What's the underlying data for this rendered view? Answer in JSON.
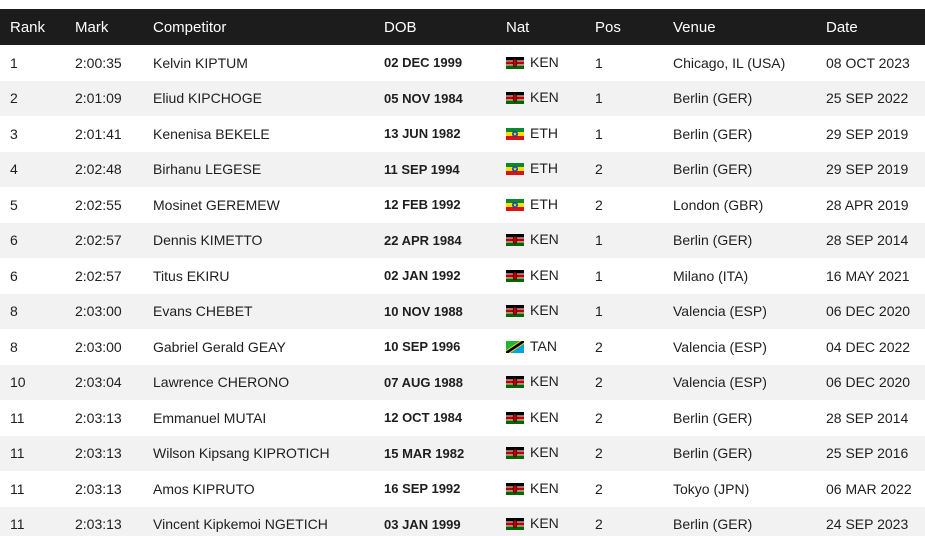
{
  "headers": {
    "rank": "Rank",
    "mark": "Mark",
    "competitor": "Competitor",
    "dob": "DOB",
    "nat": "Nat",
    "pos": "Pos",
    "venue": "Venue",
    "date": "Date"
  },
  "rows": [
    {
      "rank": "1",
      "mark": "2:00:35",
      "competitor": "Kelvin KIPTUM",
      "dob": "02 DEC 1999",
      "nat": "KEN",
      "flag": "kenya-flag-icon",
      "pos": "1",
      "venue": "Chicago, IL (USA)",
      "date": "08 OCT 2023"
    },
    {
      "rank": "2",
      "mark": "2:01:09",
      "competitor": "Eliud KIPCHOGE",
      "dob": "05 NOV 1984",
      "nat": "KEN",
      "flag": "kenya-flag-icon",
      "pos": "1",
      "venue": "Berlin (GER)",
      "date": "25 SEP 2022"
    },
    {
      "rank": "3",
      "mark": "2:01:41",
      "competitor": "Kenenisa BEKELE",
      "dob": "13 JUN 1982",
      "nat": "ETH",
      "flag": "ethiopia-flag-icon",
      "pos": "1",
      "venue": "Berlin (GER)",
      "date": "29 SEP 2019"
    },
    {
      "rank": "4",
      "mark": "2:02:48",
      "competitor": "Birhanu LEGESE",
      "dob": "11 SEP 1994",
      "nat": "ETH",
      "flag": "ethiopia-flag-icon",
      "pos": "2",
      "venue": "Berlin (GER)",
      "date": "29 SEP 2019"
    },
    {
      "rank": "5",
      "mark": "2:02:55",
      "competitor": "Mosinet GEREMEW",
      "dob": "12 FEB 1992",
      "nat": "ETH",
      "flag": "ethiopia-flag-icon",
      "pos": "2",
      "venue": "London (GBR)",
      "date": "28 APR 2019"
    },
    {
      "rank": "6",
      "mark": "2:02:57",
      "competitor": "Dennis KIMETTO",
      "dob": "22 APR 1984",
      "nat": "KEN",
      "flag": "kenya-flag-icon",
      "pos": "1",
      "venue": "Berlin (GER)",
      "date": "28 SEP 2014"
    },
    {
      "rank": "6",
      "mark": "2:02:57",
      "competitor": "Titus EKIRU",
      "dob": "02 JAN 1992",
      "nat": "KEN",
      "flag": "kenya-flag-icon",
      "pos": "1",
      "venue": "Milano (ITA)",
      "date": "16 MAY 2021"
    },
    {
      "rank": "8",
      "mark": "2:03:00",
      "competitor": "Evans CHEBET",
      "dob": "10 NOV 1988",
      "nat": "KEN",
      "flag": "kenya-flag-icon",
      "pos": "1",
      "venue": "Valencia (ESP)",
      "date": "06 DEC 2020"
    },
    {
      "rank": "8",
      "mark": "2:03:00",
      "competitor": "Gabriel Gerald GEAY",
      "dob": "10 SEP 1996",
      "nat": "TAN",
      "flag": "tanzania-flag-icon",
      "pos": "2",
      "venue": "Valencia (ESP)",
      "date": "04 DEC 2022"
    },
    {
      "rank": "10",
      "mark": "2:03:04",
      "competitor": "Lawrence CHERONO",
      "dob": "07 AUG 1988",
      "nat": "KEN",
      "flag": "kenya-flag-icon",
      "pos": "2",
      "venue": "Valencia (ESP)",
      "date": "06 DEC 2020"
    },
    {
      "rank": "11",
      "mark": "2:03:13",
      "competitor": "Emmanuel MUTAI",
      "dob": "12 OCT 1984",
      "nat": "KEN",
      "flag": "kenya-flag-icon",
      "pos": "2",
      "venue": "Berlin (GER)",
      "date": "28 SEP 2014"
    },
    {
      "rank": "11",
      "mark": "2:03:13",
      "competitor": "Wilson Kipsang KIPROTICH",
      "dob": "15 MAR 1982",
      "nat": "KEN",
      "flag": "kenya-flag-icon",
      "pos": "2",
      "venue": "Berlin (GER)",
      "date": "25 SEP 2016"
    },
    {
      "rank": "11",
      "mark": "2:03:13",
      "competitor": "Amos KIPRUTO",
      "dob": "16 SEP 1992",
      "nat": "KEN",
      "flag": "kenya-flag-icon",
      "pos": "2",
      "venue": "Tokyo (JPN)",
      "date": "06 MAR 2022"
    },
    {
      "rank": "11",
      "mark": "2:03:13",
      "competitor": "Vincent Kipkemoi NGETICH",
      "dob": "03 JAN 1999",
      "nat": "KEN",
      "flag": "kenya-flag-icon",
      "pos": "2",
      "venue": "Berlin (GER)",
      "date": "24 SEP 2023"
    }
  ],
  "colors": {
    "header_bg": "#1c1c1c",
    "header_text": "#ffffff",
    "row_alt_bg": "#f2f2f2",
    "row_bg": "#ffffff",
    "text": "#1e1e1e"
  }
}
